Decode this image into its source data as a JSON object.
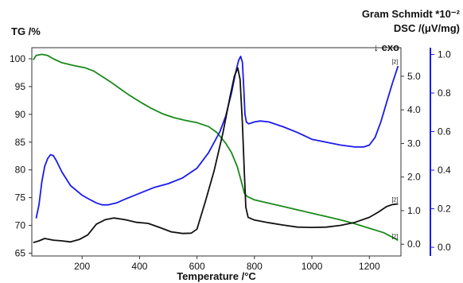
{
  "chart_data": {
    "type": "line",
    "xlabel": "Temperature /°C",
    "x_ticks": [
      200,
      400,
      600,
      800,
      1000,
      1200
    ],
    "xlim": [
      25,
      1310
    ],
    "axes": {
      "tg": {
        "label": "TG /%",
        "ylim": [
          64.5,
          102
        ],
        "ticks": [
          65,
          70,
          75,
          80,
          85,
          90,
          95,
          100
        ]
      },
      "gram_schmidt": {
        "label": "Gram Schmidt *10⁻²",
        "ylim": [
          -0.35,
          5.85
        ],
        "ticks": [
          0,
          1.0,
          2.0,
          3.0,
          4.0,
          5.0
        ]
      },
      "dsc": {
        "label": "DSC /(μV/mg)",
        "ylim": [
          -0.045,
          1.035
        ],
        "ticks": [
          0.0,
          0.2,
          0.4,
          0.6,
          0.8,
          1.0
        ],
        "exo_label": "↓ exo"
      }
    },
    "series": [
      {
        "axis": "tg",
        "color": "#1a8a1a",
        "end_marker": "[2]",
        "points": [
          [
            30,
            99.8
          ],
          [
            40,
            100.6
          ],
          [
            60,
            100.8
          ],
          [
            80,
            100.6
          ],
          [
            100,
            100
          ],
          [
            130,
            99.3
          ],
          [
            170,
            98.8
          ],
          [
            210,
            98.4
          ],
          [
            240,
            97.8
          ],
          [
            270,
            96.8
          ],
          [
            300,
            95.8
          ],
          [
            330,
            94.7
          ],
          [
            360,
            93.6
          ],
          [
            400,
            92.3
          ],
          [
            440,
            91.1
          ],
          [
            480,
            90.1
          ],
          [
            520,
            89.4
          ],
          [
            560,
            88.9
          ],
          [
            600,
            88.5
          ],
          [
            640,
            87.8
          ],
          [
            670,
            86.7
          ],
          [
            700,
            84.8
          ],
          [
            720,
            83.1
          ],
          [
            740,
            80.6
          ],
          [
            755,
            77.8
          ],
          [
            765,
            75.8
          ],
          [
            775,
            75.2
          ],
          [
            800,
            74.6
          ],
          [
            850,
            74
          ],
          [
            900,
            73.4
          ],
          [
            950,
            72.8
          ],
          [
            1000,
            72.2
          ],
          [
            1050,
            71.6
          ],
          [
            1100,
            71
          ],
          [
            1150,
            70.3
          ],
          [
            1200,
            69.5
          ],
          [
            1250,
            68.7
          ],
          [
            1290,
            67.6
          ],
          [
            1300,
            67.3
          ]
        ]
      },
      {
        "axis": "dsc",
        "color": "#1a1aee",
        "end_marker": "[2]",
        "points": [
          [
            40,
            0.15
          ],
          [
            50,
            0.22
          ],
          [
            60,
            0.34
          ],
          [
            70,
            0.42
          ],
          [
            80,
            0.46
          ],
          [
            90,
            0.48
          ],
          [
            100,
            0.475
          ],
          [
            110,
            0.45
          ],
          [
            130,
            0.39
          ],
          [
            160,
            0.32
          ],
          [
            200,
            0.27
          ],
          [
            230,
            0.245
          ],
          [
            250,
            0.23
          ],
          [
            270,
            0.22
          ],
          [
            290,
            0.22
          ],
          [
            320,
            0.23
          ],
          [
            350,
            0.25
          ],
          [
            400,
            0.28
          ],
          [
            450,
            0.31
          ],
          [
            500,
            0.33
          ],
          [
            550,
            0.36
          ],
          [
            570,
            0.38
          ],
          [
            600,
            0.41
          ],
          [
            640,
            0.49
          ],
          [
            680,
            0.6
          ],
          [
            700,
            0.68
          ],
          [
            720,
            0.8
          ],
          [
            735,
            0.91
          ],
          [
            745,
            0.97
          ],
          [
            752,
            0.99
          ],
          [
            758,
            0.96
          ],
          [
            763,
            0.82
          ],
          [
            767,
            0.69
          ],
          [
            772,
            0.65
          ],
          [
            780,
            0.64
          ],
          [
            800,
            0.65
          ],
          [
            820,
            0.655
          ],
          [
            850,
            0.65
          ],
          [
            900,
            0.625
          ],
          [
            950,
            0.595
          ],
          [
            1000,
            0.56
          ],
          [
            1050,
            0.545
          ],
          [
            1100,
            0.53
          ],
          [
            1150,
            0.52
          ],
          [
            1180,
            0.52
          ],
          [
            1200,
            0.53
          ],
          [
            1220,
            0.57
          ],
          [
            1240,
            0.65
          ],
          [
            1260,
            0.75
          ],
          [
            1280,
            0.85
          ],
          [
            1300,
            0.94
          ]
        ]
      },
      {
        "axis": "gram_schmidt",
        "color": "#111111",
        "end_marker": "[2]",
        "points": [
          [
            30,
            0.05
          ],
          [
            50,
            0.1
          ],
          [
            70,
            0.17
          ],
          [
            100,
            0.12
          ],
          [
            130,
            0.1
          ],
          [
            160,
            0.07
          ],
          [
            190,
            0.14
          ],
          [
            220,
            0.28
          ],
          [
            250,
            0.6
          ],
          [
            280,
            0.73
          ],
          [
            310,
            0.78
          ],
          [
            350,
            0.73
          ],
          [
            390,
            0.65
          ],
          [
            430,
            0.62
          ],
          [
            470,
            0.5
          ],
          [
            510,
            0.37
          ],
          [
            550,
            0.32
          ],
          [
            580,
            0.33
          ],
          [
            600,
            0.45
          ],
          [
            630,
            1.3
          ],
          [
            660,
            2.2
          ],
          [
            690,
            3.3
          ],
          [
            715,
            4.4
          ],
          [
            730,
            5
          ],
          [
            742,
            5.25
          ],
          [
            750,
            4.9
          ],
          [
            758,
            3.6
          ],
          [
            765,
            2.1
          ],
          [
            770,
            1.1
          ],
          [
            778,
            0.8
          ],
          [
            800,
            0.72
          ],
          [
            850,
            0.64
          ],
          [
            900,
            0.57
          ],
          [
            950,
            0.51
          ],
          [
            1000,
            0.5
          ],
          [
            1050,
            0.51
          ],
          [
            1100,
            0.56
          ],
          [
            1150,
            0.65
          ],
          [
            1200,
            0.8
          ],
          [
            1230,
            0.95
          ],
          [
            1260,
            1.12
          ],
          [
            1280,
            1.18
          ],
          [
            1300,
            1.2
          ]
        ]
      }
    ]
  }
}
